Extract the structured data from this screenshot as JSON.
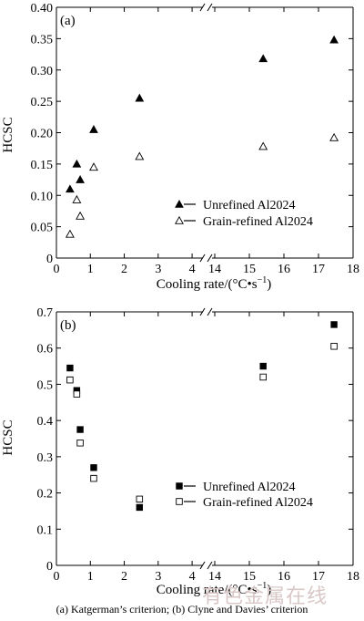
{
  "caption": "(a) Katgerman’s criterion; (b) Clyne and Davies’ criterion",
  "watermark": "有色金属在线",
  "colors": {
    "axis": "#000000",
    "marker": "#000000"
  },
  "chart_data": [
    {
      "type": "scatter",
      "panel_label": "(a)",
      "xlabel": "Cooling rate/(°C•s",
      "xlabel_sup": "−1",
      "xlabel_end": ")",
      "ylabel": "HCSC",
      "ylim": [
        0,
        0.4
      ],
      "yticks": [
        0,
        0.05,
        0.1,
        0.15,
        0.2,
        0.25,
        0.3,
        0.35,
        0.4
      ],
      "ytick_labels": [
        "0",
        "0.05",
        "0.10",
        "0.15",
        "0.20",
        "0.25",
        "0.30",
        "0.35",
        "0.40"
      ],
      "x_broken_axis": true,
      "xticks": [
        0,
        1,
        2,
        3,
        4,
        14,
        15,
        16,
        17,
        18
      ],
      "xtick_labels": [
        "0",
        "1",
        "2",
        "3",
        "4",
        "14",
        "15",
        "16",
        "17",
        "18"
      ],
      "legend_position": "lower-right",
      "series": [
        {
          "name": "Unrefined Al2024",
          "marker": "filled-triangle",
          "x": [
            0.4,
            0.6,
            0.7,
            1.1,
            2.45,
            15.4,
            17.45
          ],
          "y": [
            0.11,
            0.15,
            0.125,
            0.205,
            0.255,
            0.318,
            0.348
          ]
        },
        {
          "name": "Grain-refined Al2024",
          "marker": "open-triangle",
          "x": [
            0.4,
            0.6,
            0.7,
            1.1,
            2.45,
            15.4,
            17.45
          ],
          "y": [
            0.038,
            0.093,
            0.067,
            0.145,
            0.162,
            0.178,
            0.192
          ]
        }
      ]
    },
    {
      "type": "scatter",
      "panel_label": "(b)",
      "xlabel": "Cooling rate/(°C•s",
      "xlabel_sup": "−1",
      "xlabel_end": ")",
      "ylabel": "HCSC",
      "ylim": [
        0,
        0.7
      ],
      "yticks": [
        0,
        0.1,
        0.2,
        0.3,
        0.4,
        0.5,
        0.6,
        0.7
      ],
      "ytick_labels": [
        "0",
        "0.1",
        "0.2",
        "0.3",
        "0.4",
        "0.5",
        "0.6",
        "0.7"
      ],
      "x_broken_axis": true,
      "xticks": [
        0,
        1,
        2,
        3,
        4,
        14,
        15,
        16,
        17,
        18
      ],
      "xtick_labels": [
        "0",
        "1",
        "2",
        "3",
        "4",
        "14",
        "15",
        "16",
        "17",
        "18"
      ],
      "legend_position": "lower-right",
      "series": [
        {
          "name": "Unrefined Al2024",
          "marker": "filled-square",
          "x": [
            0.4,
            0.6,
            0.7,
            1.1,
            2.45,
            15.4,
            17.45
          ],
          "y": [
            0.545,
            0.483,
            0.375,
            0.27,
            0.16,
            0.55,
            0.665
          ]
        },
        {
          "name": "Grain-refined Al2024",
          "marker": "open-square",
          "x": [
            0.4,
            0.6,
            0.7,
            1.1,
            2.45,
            15.4,
            17.45
          ],
          "y": [
            0.512,
            0.473,
            0.338,
            0.24,
            0.183,
            0.52,
            0.605
          ]
        }
      ]
    }
  ]
}
